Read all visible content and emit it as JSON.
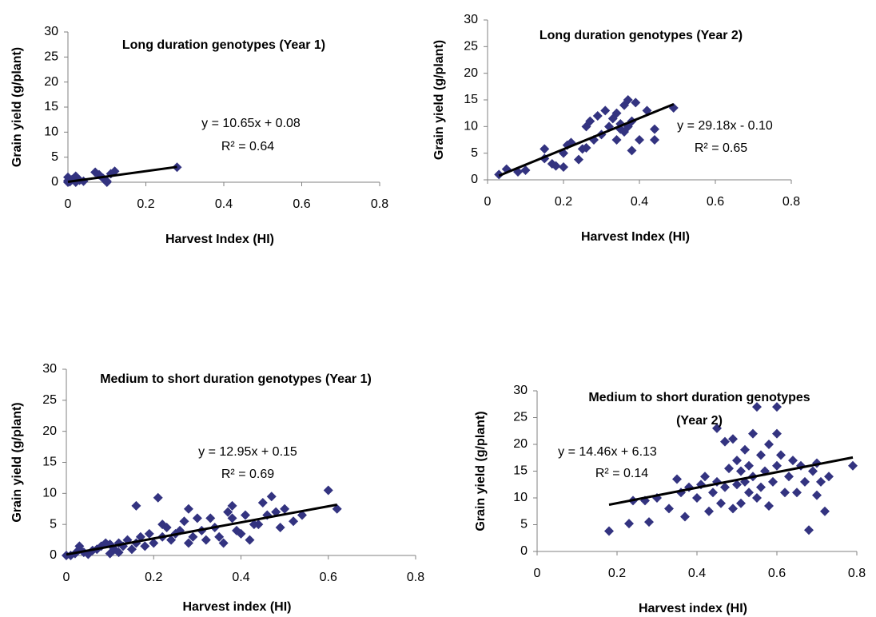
{
  "chart_data": [
    {
      "type": "scatter",
      "title": "Long duration genotypes (Year 1)",
      "xlabel": "Harvest Index (HI)",
      "ylabel": "Grain yield (g/plant)",
      "color": "#333380",
      "x": [
        0,
        0,
        0,
        0.01,
        0.02,
        0.03,
        0.02,
        0.04,
        0.07,
        0.08,
        0.09,
        0.1,
        0.1,
        0.11,
        0.12,
        0.28,
        0.005,
        0.015
      ],
      "y": [
        0,
        1,
        0.3,
        0.5,
        1.2,
        0.4,
        0,
        0.2,
        2,
        1.5,
        0.8,
        0.2,
        0,
        1.7,
        2.2,
        3,
        0.1,
        0.8
      ],
      "xlim": [
        0,
        0.8
      ],
      "ylim": [
        0,
        30
      ],
      "xticks": [
        0,
        0.2,
        0.4,
        0.6,
        0.8
      ],
      "yticks": [
        0,
        5,
        10,
        15,
        20,
        25,
        30
      ],
      "trendline": {
        "equation": "y = 10.65x + 0.08",
        "r2": "R² = 0.64",
        "slope": 10.65,
        "intercept": 0.08,
        "x_range": [
          0,
          0.28
        ]
      }
    },
    {
      "type": "scatter",
      "title": "Long duration genotypes (Year 2)",
      "xlabel": "Harvest Index (HI)",
      "ylabel": "Grain yield (g/plant)",
      "color": "#333380",
      "x": [
        0.03,
        0.05,
        0.08,
        0.1,
        0.15,
        0.15,
        0.17,
        0.18,
        0.2,
        0.2,
        0.21,
        0.22,
        0.24,
        0.25,
        0.26,
        0.26,
        0.27,
        0.28,
        0.29,
        0.3,
        0.31,
        0.32,
        0.33,
        0.34,
        0.34,
        0.35,
        0.36,
        0.37,
        0.37,
        0.38,
        0.38,
        0.39,
        0.4,
        0.42,
        0.44,
        0.44,
        0.49,
        0.35,
        0.36
      ],
      "y": [
        1,
        2,
        1.5,
        1.8,
        5.8,
        4,
        3,
        2.6,
        2.4,
        5,
        6.5,
        7,
        3.8,
        5.8,
        10,
        6,
        11,
        7.5,
        12,
        8.5,
        13,
        10,
        11.5,
        12.5,
        7.5,
        9.5,
        14,
        15,
        10,
        5.5,
        11,
        14.5,
        7.5,
        13,
        9.5,
        7.5,
        13.5,
        10.5,
        9
      ],
      "xlim": [
        0,
        0.8
      ],
      "ylim": [
        0,
        30
      ],
      "xticks": [
        0,
        0.2,
        0.4,
        0.6,
        0.8
      ],
      "yticks": [
        0,
        5,
        10,
        15,
        20,
        25,
        30
      ],
      "trendline": {
        "equation": "y = 29.18x - 0.10",
        "r2": "R² = 0.65",
        "slope": 29.18,
        "intercept": -0.1,
        "x_range": [
          0.03,
          0.49
        ]
      }
    },
    {
      "type": "scatter",
      "title": "Medium to short duration genotypes (Year 1)",
      "xlabel": "Harvest index (HI)",
      "ylabel": "Grain yield (g/plant)",
      "color": "#333380",
      "x": [
        0,
        0.01,
        0.02,
        0.03,
        0.03,
        0.04,
        0.05,
        0.06,
        0.07,
        0.08,
        0.09,
        0.1,
        0.1,
        0.11,
        0.12,
        0.12,
        0.13,
        0.14,
        0.15,
        0.16,
        0.16,
        0.17,
        0.18,
        0.19,
        0.2,
        0.21,
        0.22,
        0.22,
        0.23,
        0.24,
        0.25,
        0.26,
        0.27,
        0.28,
        0.28,
        0.29,
        0.3,
        0.31,
        0.32,
        0.33,
        0.34,
        0.35,
        0.36,
        0.37,
        0.38,
        0.38,
        0.39,
        0.4,
        0.41,
        0.42,
        0.43,
        0.44,
        0.45,
        0.46,
        0.47,
        0.48,
        0.49,
        0.5,
        0.52,
        0.54,
        0.6,
        0.62
      ],
      "y": [
        0,
        0,
        0.3,
        1,
        1.5,
        0.5,
        0.2,
        0.8,
        1,
        1.5,
        2,
        1.8,
        0.3,
        1,
        2,
        0.5,
        1.5,
        2.5,
        1,
        8,
        2,
        3,
        1.5,
        3.5,
        2,
        9.3,
        5,
        3,
        4.5,
        2.5,
        3.5,
        4,
        5.5,
        7.5,
        2,
        3,
        6,
        4,
        2.5,
        6,
        4.5,
        3,
        2,
        7,
        6,
        8,
        4,
        3.5,
        6.5,
        2.5,
        5,
        5,
        8.5,
        6.5,
        9.5,
        7,
        4.5,
        7.5,
        5.5,
        6.5,
        10.5,
        7.5
      ],
      "xlim": [
        0,
        0.8
      ],
      "ylim": [
        0,
        30
      ],
      "xticks": [
        0,
        0.2,
        0.4,
        0.6,
        0.8
      ],
      "yticks": [
        0,
        5,
        10,
        15,
        20,
        25,
        30
      ],
      "trendline": {
        "equation": "y = 12.95x + 0.15",
        "r2": "R² = 0.69",
        "slope": 12.95,
        "intercept": 0.15,
        "x_range": [
          0,
          0.62
        ]
      }
    },
    {
      "type": "scatter",
      "title": [
        "Medium to short duration genotypes",
        "(Year 2)"
      ],
      "xlabel": "Harvest index (HI)",
      "ylabel": "Grain yield (g/plant)",
      "color": "#333380",
      "x": [
        0.18,
        0.23,
        0.24,
        0.27,
        0.28,
        0.3,
        0.33,
        0.35,
        0.36,
        0.37,
        0.38,
        0.4,
        0.41,
        0.42,
        0.43,
        0.44,
        0.45,
        0.45,
        0.46,
        0.47,
        0.47,
        0.48,
        0.49,
        0.49,
        0.5,
        0.5,
        0.51,
        0.51,
        0.52,
        0.52,
        0.53,
        0.53,
        0.54,
        0.54,
        0.55,
        0.55,
        0.56,
        0.56,
        0.57,
        0.58,
        0.58,
        0.59,
        0.6,
        0.6,
        0.6,
        0.61,
        0.62,
        0.63,
        0.64,
        0.65,
        0.66,
        0.67,
        0.68,
        0.69,
        0.7,
        0.7,
        0.71,
        0.72,
        0.73,
        0.79
      ],
      "y": [
        3.8,
        5.2,
        9.5,
        9.5,
        5.5,
        10,
        8,
        13.5,
        11,
        6.5,
        12,
        10,
        12.5,
        14,
        7.5,
        11,
        23,
        13,
        9,
        20.5,
        12,
        15.5,
        8,
        21,
        17,
        12.5,
        9,
        15,
        19,
        13,
        16,
        11,
        22,
        14,
        27,
        10,
        18,
        12,
        15,
        8.5,
        20,
        13,
        27,
        22,
        16,
        18,
        11,
        14,
        17,
        11,
        16,
        13,
        4,
        15,
        16.5,
        10.5,
        13,
        7.5,
        14,
        16
      ],
      "xlim": [
        0,
        0.8
      ],
      "ylim": [
        0,
        30
      ],
      "xticks": [
        0,
        0.2,
        0.4,
        0.6,
        0.8
      ],
      "yticks": [
        0,
        5,
        10,
        15,
        20,
        25,
        30
      ],
      "trendline": {
        "equation": "y = 14.46x + 6.13",
        "r2": "R² = 0.14",
        "slope": 14.46,
        "intercept": 6.13,
        "x_range": [
          0.18,
          0.79
        ]
      }
    }
  ]
}
